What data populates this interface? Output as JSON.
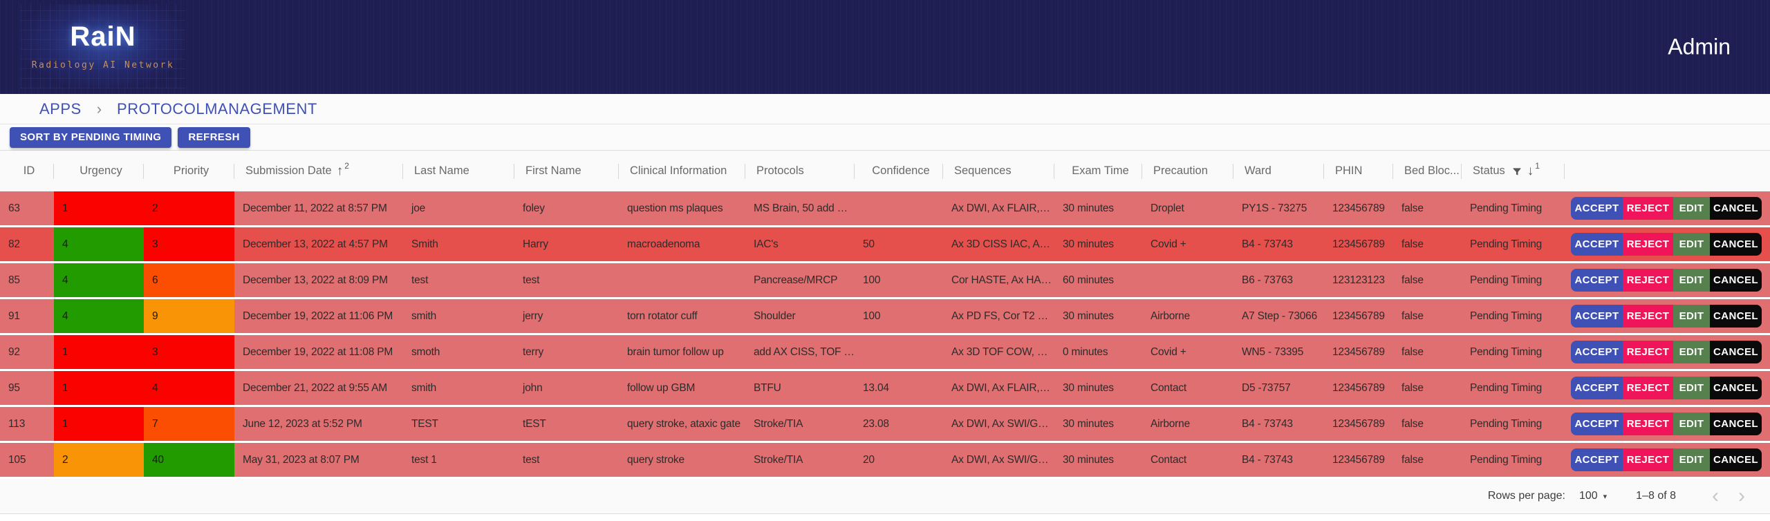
{
  "navbar": {
    "logo_title": "RaiN",
    "logo_subtitle": "Radiology AI Network",
    "user": "Admin"
  },
  "breadcrumb": {
    "items": [
      "APPS",
      "PROTOCOLMANAGEMENT"
    ],
    "separator": "›"
  },
  "toolbar": {
    "sort_button": "SORT BY PENDING TIMING",
    "refresh_button": "REFRESH"
  },
  "table": {
    "columns": [
      {
        "key": "id",
        "label": "ID",
        "align": "center"
      },
      {
        "key": "urgency",
        "label": "Urgency",
        "align": "center"
      },
      {
        "key": "priority",
        "label": "Priority",
        "align": "center"
      },
      {
        "key": "submission_date",
        "label": "Submission Date",
        "sort_arrow": "↑",
        "sort_badge": "2"
      },
      {
        "key": "last_name",
        "label": "Last Name"
      },
      {
        "key": "first_name",
        "label": "First Name"
      },
      {
        "key": "clinical_information",
        "label": "Clinical Information"
      },
      {
        "key": "protocols",
        "label": "Protocols"
      },
      {
        "key": "confidence",
        "label": "Confidence",
        "align": "center"
      },
      {
        "key": "sequences",
        "label": "Sequences"
      },
      {
        "key": "exam_time",
        "label": "Exam Time",
        "align": "center"
      },
      {
        "key": "precaution",
        "label": "Precaution"
      },
      {
        "key": "ward",
        "label": "Ward"
      },
      {
        "key": "phin",
        "label": "PHIN"
      },
      {
        "key": "bed_blocked",
        "label": "Bed Bloc..."
      },
      {
        "key": "status",
        "label": "Status",
        "filter_icon": true,
        "sort_arrow": "↓",
        "sort_badge": "1"
      },
      {
        "key": "actions",
        "label": ""
      }
    ],
    "action_buttons": [
      {
        "key": "accept",
        "label": "ACCEPT"
      },
      {
        "key": "reject",
        "label": "REJECT"
      },
      {
        "key": "edit",
        "label": "EDIT"
      },
      {
        "key": "cancel",
        "label": "CANCEL"
      }
    ],
    "rows": [
      {
        "id": "63",
        "urgency": {
          "value": "1",
          "color": "red"
        },
        "priority": {
          "value": "2",
          "color": "red"
        },
        "submission_date": "December 11, 2022 at 8:57 PM",
        "last_name": "joe",
        "first_name": "foley",
        "clinical_information": "question ms plaques",
        "protocols": "MS Brain, 50 add …",
        "confidence": "",
        "sequences": "Ax DWI, Ax FLAIR,…",
        "exam_time": "30 minutes",
        "precaution": "Droplet",
        "ward": "PY1S - 73275",
        "phin": "123456789",
        "bed_blocked": "false",
        "status": "Pending Timing",
        "highlighted": false
      },
      {
        "id": "82",
        "urgency": {
          "value": "4",
          "color": "green"
        },
        "priority": {
          "value": "3",
          "color": "red"
        },
        "submission_date": "December 13, 2022 at 4:57 PM",
        "last_name": "Smith",
        "first_name": "Harry",
        "clinical_information": "macroadenoma",
        "protocols": "IAC's",
        "confidence": "50",
        "sequences": "Ax 3D CISS IAC, A…",
        "exam_time": "30 minutes",
        "precaution": "Covid +",
        "ward": "B4 - 73743",
        "phin": "123456789",
        "bed_blocked": "false",
        "status": "Pending Timing",
        "highlighted": true
      },
      {
        "id": "85",
        "urgency": {
          "value": "4",
          "color": "green"
        },
        "priority": {
          "value": "6",
          "color": "orangered"
        },
        "submission_date": "December 13, 2022 at 8:09 PM",
        "last_name": "test",
        "first_name": "test",
        "clinical_information": "",
        "protocols": "Pancrease/MRCP",
        "confidence": "100",
        "sequences": "Cor HASTE, Ax HA…",
        "exam_time": "60 minutes",
        "precaution": "",
        "ward": "B6 - 73763",
        "phin": "123123123",
        "bed_blocked": "false",
        "status": "Pending Timing",
        "highlighted": false
      },
      {
        "id": "91",
        "urgency": {
          "value": "4",
          "color": "green"
        },
        "priority": {
          "value": "9",
          "color": "orange"
        },
        "submission_date": "December 19, 2022 at 11:06 PM",
        "last_name": "smith",
        "first_name": "jerry",
        "clinical_information": "torn rotator cuff",
        "protocols": "Shoulder",
        "confidence": "100",
        "sequences": "Ax PD FS, Cor T2 …",
        "exam_time": "30 minutes",
        "precaution": "Airborne",
        "ward": "A7 Step - 73066",
        "phin": "123456789",
        "bed_blocked": "false",
        "status": "Pending Timing",
        "highlighted": false
      },
      {
        "id": "92",
        "urgency": {
          "value": "1",
          "color": "red"
        },
        "priority": {
          "value": "3",
          "color": "red"
        },
        "submission_date": "December 19, 2022 at 11:08 PM",
        "last_name": "smoth",
        "first_name": "terry",
        "clinical_information": "brain tumor follow up",
        "protocols": "add AX CISS, TOF …",
        "confidence": "",
        "sequences": "Ax 3D TOF COW, …",
        "exam_time": "0 minutes",
        "precaution": "Covid +",
        "ward": "WN5 - 73395",
        "phin": "123456789",
        "bed_blocked": "false",
        "status": "Pending Timing",
        "highlighted": false
      },
      {
        "id": "95",
        "urgency": {
          "value": "1",
          "color": "red"
        },
        "priority": {
          "value": "4",
          "color": "red"
        },
        "submission_date": "December 21, 2022 at 9:55 AM",
        "last_name": "smith",
        "first_name": "john",
        "clinical_information": "follow up GBM",
        "protocols": "BTFU",
        "confidence": "13.04",
        "sequences": "Ax DWI, Ax FLAIR,…",
        "exam_time": "30 minutes",
        "precaution": "Contact",
        "ward": "D5 -73757",
        "phin": "123456789",
        "bed_blocked": "false",
        "status": "Pending Timing",
        "highlighted": false
      },
      {
        "id": "113",
        "urgency": {
          "value": "1",
          "color": "red"
        },
        "priority": {
          "value": "7",
          "color": "orangered"
        },
        "submission_date": "June 12, 2023 at 5:52 PM",
        "last_name": "TEST",
        "first_name": "tEST",
        "clinical_information": "query stroke, ataxic gate",
        "protocols": "Stroke/TIA",
        "confidence": "23.08",
        "sequences": "Ax DWI, Ax SWI/G…",
        "exam_time": "30 minutes",
        "precaution": "Airborne",
        "ward": "B4 - 73743",
        "phin": "123456789",
        "bed_blocked": "false",
        "status": "Pending Timing",
        "highlighted": false
      },
      {
        "id": "105",
        "urgency": {
          "value": "2",
          "color": "orange"
        },
        "priority": {
          "value": "40",
          "color": "green"
        },
        "submission_date": "May 31, 2023 at 8:07 PM",
        "last_name": "test 1",
        "first_name": "test",
        "clinical_information": "query stroke",
        "protocols": "Stroke/TIA",
        "confidence": "20",
        "sequences": "Ax DWI, Ax SWI/G…",
        "exam_time": "30 minutes",
        "precaution": "Contact",
        "ward": "B4 - 73743",
        "phin": "123456789",
        "bed_blocked": "false",
        "status": "Pending Timing",
        "highlighted": false
      }
    ]
  },
  "footer": {
    "rows_per_page_label": "Rows per page:",
    "rows_per_page_value": "100",
    "range_label": "1–8 of 8",
    "prev_icon": "‹",
    "next_icon": "›",
    "caret_icon": "▾"
  },
  "colors": {
    "navbar_bg": "#1f1e52",
    "accent_indigo": "#3f51b5",
    "row_bg": "#df6f70",
    "row_bg_highlight": "#e5504d",
    "cell_colors": {
      "red": "#fa0200",
      "green": "#219b00",
      "orangered": "#fc4e03",
      "orange": "#f89405"
    },
    "button_colors": {
      "accept": "#3f51b5",
      "reject": "#f0145a",
      "edit": "#56814e",
      "cancel": "#0a0a0a"
    }
  }
}
